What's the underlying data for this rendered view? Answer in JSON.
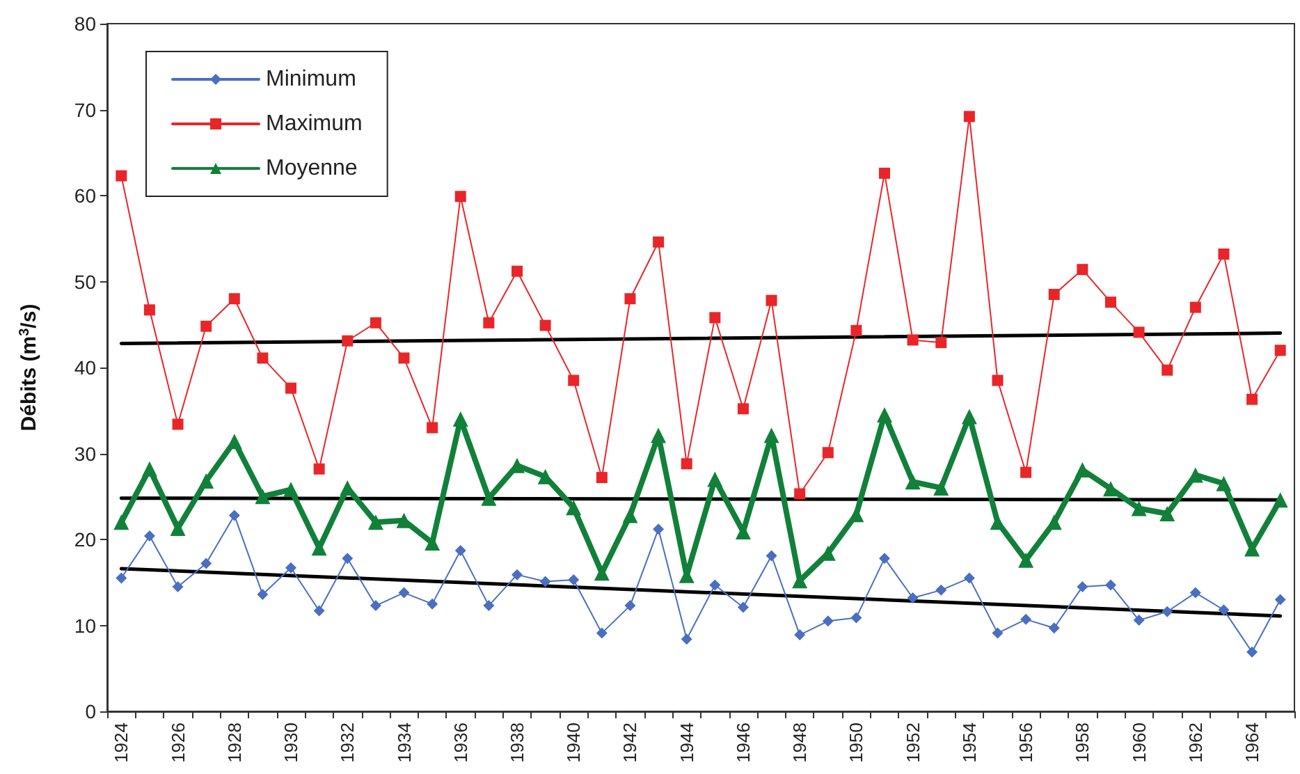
{
  "chart_data": {
    "type": "line",
    "ylabel": "Débits (m$^{3}$/s)",
    "categories": [
      "1924",
      null,
      "1926",
      null,
      "1928",
      null,
      "1930",
      null,
      "1932",
      null,
      "1934",
      null,
      "1936",
      null,
      "1938",
      null,
      "1940",
      null,
      "1942",
      null,
      "1944",
      null,
      "1946",
      null,
      "1948",
      null,
      "1950",
      null,
      "1952",
      null,
      "1954",
      null,
      "1956",
      null,
      "1958",
      null,
      "1960",
      null,
      "1962",
      null,
      "1964",
      null
    ],
    "series": [
      {
        "name": "Minimum",
        "color": "#4a6fc0",
        "marker": "diamond",
        "values": [
          15.5,
          20.4,
          14.5,
          17.2,
          22.8,
          13.6,
          16.7,
          11.7,
          17.8,
          12.3,
          13.8,
          12.5,
          18.7,
          12.3,
          15.9,
          15.1,
          15.3,
          9.1,
          12.3,
          21.2,
          8.4,
          14.7,
          12.1,
          18.1,
          8.9,
          10.5,
          10.9,
          17.8,
          13.2,
          14.1,
          15.5,
          9.1,
          10.7,
          9.7,
          14.5,
          14.7,
          10.6,
          11.6,
          13.8,
          11.8,
          6.9,
          13.0
        ]
      },
      {
        "name": "Maximum",
        "color": "#e8262a",
        "marker": "square",
        "values": [
          62.3,
          46.7,
          33.4,
          44.8,
          48.0,
          41.1,
          37.6,
          28.2,
          43.1,
          45.2,
          41.1,
          33.0,
          59.9,
          45.2,
          51.2,
          44.9,
          38.5,
          27.2,
          48.0,
          54.6,
          28.8,
          45.8,
          35.2,
          47.8,
          25.3,
          30.1,
          44.3,
          62.6,
          43.2,
          42.9,
          69.2,
          38.5,
          27.8,
          48.5,
          51.4,
          47.6,
          44.1,
          39.7,
          47.0,
          53.2,
          36.3,
          42.0
        ]
      },
      {
        "name": "Moyenne",
        "color": "#11813a",
        "marker": "triangle",
        "values": [
          22.0,
          28.2,
          21.3,
          26.8,
          31.4,
          25.0,
          25.8,
          19.0,
          26.0,
          22.0,
          22.2,
          19.6,
          34.0,
          24.8,
          28.6,
          27.3,
          23.7,
          16.1,
          22.8,
          32.1,
          15.8,
          27.0,
          20.9,
          32.1,
          15.2,
          18.4,
          22.9,
          34.5,
          26.7,
          26.0,
          34.3,
          22.0,
          17.6,
          22.0,
          28.1,
          25.9,
          23.6,
          23.0,
          27.5,
          26.5,
          18.9,
          24.6
        ]
      },
      {
        "type": "line",
        "color": "#000000",
        "marker": "none",
        "values": [
          16.6,
          null,
          null,
          null,
          null,
          null,
          null,
          null,
          null,
          null,
          null,
          null,
          null,
          null,
          null,
          null,
          null,
          null,
          null,
          null,
          null,
          null,
          null,
          null,
          null,
          null,
          null,
          null,
          null,
          null,
          null,
          null,
          null,
          null,
          null,
          null,
          null,
          null,
          null,
          null,
          null,
          11.1
        ]
      },
      {
        "type": "line",
        "color": "#000000",
        "marker": "none",
        "values": [
          42.8,
          null,
          null,
          null,
          null,
          null,
          null,
          null,
          null,
          null,
          null,
          null,
          null,
          null,
          null,
          null,
          null,
          null,
          null,
          null,
          null,
          null,
          null,
          null,
          null,
          null,
          null,
          null,
          null,
          null,
          null,
          null,
          null,
          null,
          null,
          null,
          null,
          null,
          null,
          null,
          null,
          44.0
        ]
      },
      {
        "type": "line",
        "color": "#000000",
        "marker": "none",
        "values": [
          24.8,
          null,
          null,
          null,
          null,
          null,
          null,
          null,
          null,
          null,
          null,
          null,
          null,
          null,
          null,
          null,
          null,
          null,
          null,
          null,
          null,
          null,
          null,
          null,
          null,
          null,
          null,
          null,
          null,
          null,
          null,
          null,
          null,
          null,
          null,
          null,
          null,
          null,
          null,
          null,
          null,
          24.6
        ]
      }
    ],
    "ylim": [
      0,
      80
    ],
    "yticks": [
      0,
      10,
      20,
      30,
      40,
      50,
      60,
      70,
      80
    ],
    "grid": false,
    "legend": "top left"
  }
}
